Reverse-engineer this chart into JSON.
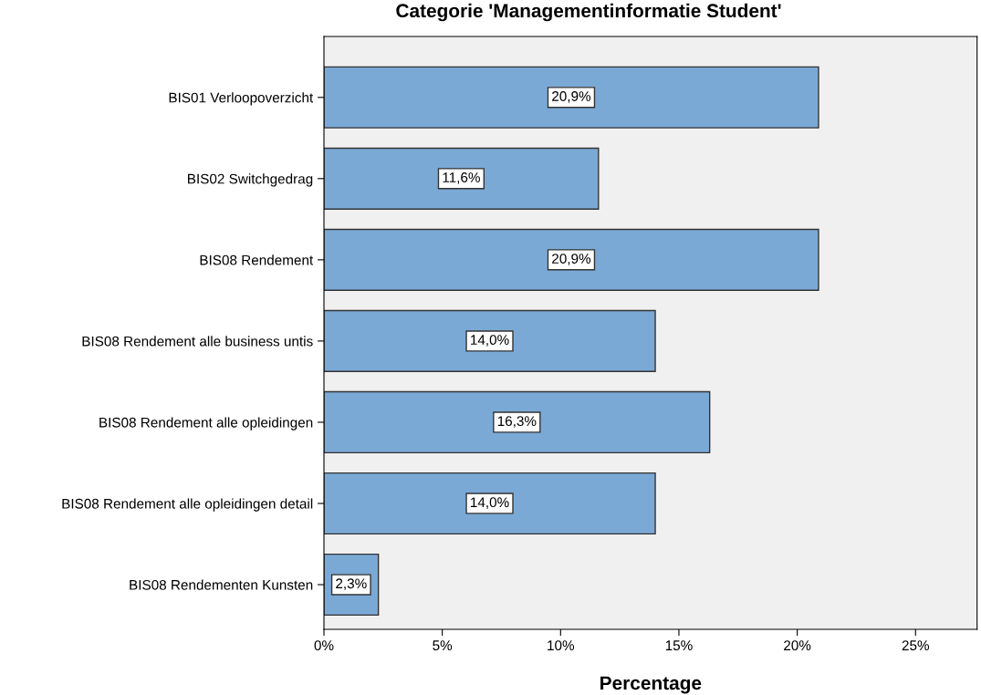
{
  "chart_data": {
    "type": "bar",
    "orientation": "horizontal",
    "title": "Categorie 'Managementinformatie Student'",
    "xlabel": "Percentage",
    "categories": [
      "BIS01 Verloopoverzicht",
      "BIS02 Switchgedrag",
      "BIS08 Rendement",
      "BIS08 Rendement alle business untis",
      "BIS08 Rendement alle opleidingen",
      "BIS08 Rendement alle opleidingen detail",
      "BIS08 Rendementen Kunsten"
    ],
    "values": [
      20.9,
      11.6,
      20.9,
      14.0,
      16.3,
      14.0,
      2.3
    ],
    "value_labels": [
      "20,9%",
      "11,6%",
      "20,9%",
      "14,0%",
      "16,3%",
      "14,0%",
      "2,3%"
    ],
    "color": "#7ba9d6",
    "xlim": [
      0,
      27.6
    ],
    "xticks": [
      {
        "value": 0,
        "label": "0%"
      },
      {
        "value": 5,
        "label": "5%"
      },
      {
        "value": 10,
        "label": "10%"
      },
      {
        "value": 15,
        "label": "15%"
      },
      {
        "value": 20,
        "label": "20%"
      },
      {
        "value": 25,
        "label": "25%"
      }
    ],
    "grid": false,
    "legend": false
  }
}
